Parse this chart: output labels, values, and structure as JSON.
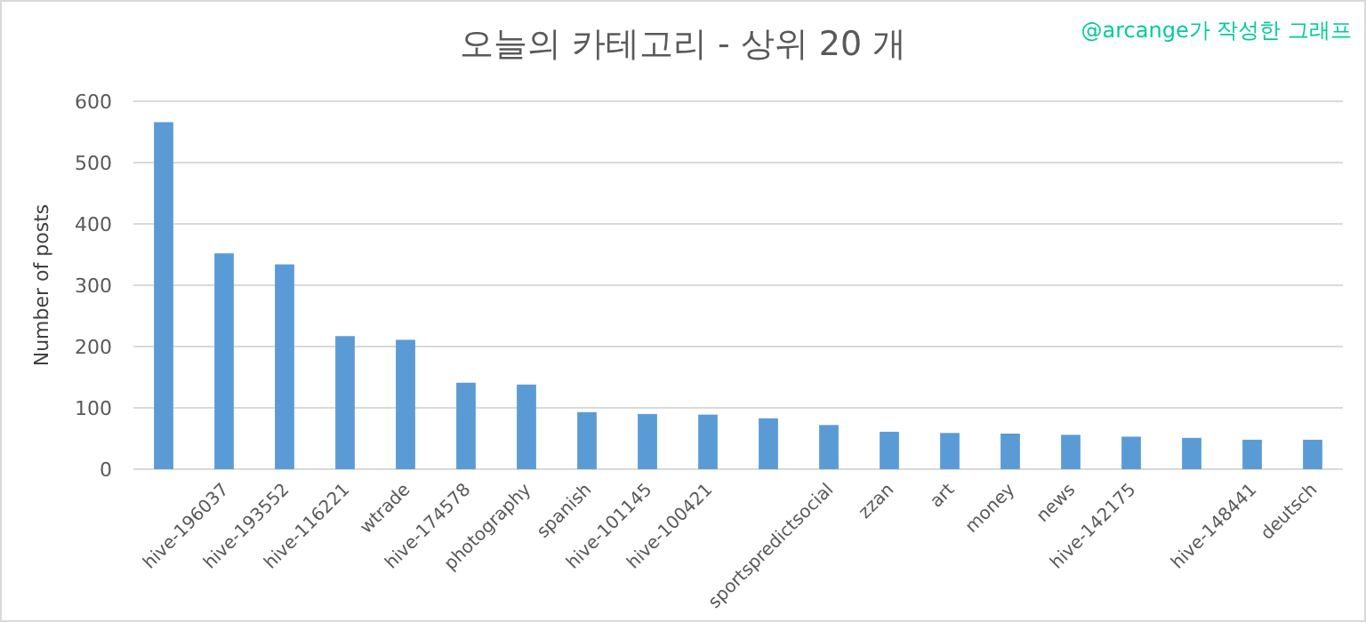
{
  "chart_data": {
    "type": "bar",
    "title": "오늘의 카테고리 - 상위 20 개",
    "ylabel": "Number  of posts",
    "annotations": [
      "@arcange가 작성한 그래프"
    ],
    "categories": [
      null,
      "hive-196037",
      "hive-193552",
      "hive-116221",
      "wtrade",
      "hive-174578",
      "photography",
      "spanish",
      "hive-101145",
      "hive-100421",
      null,
      "sportspredictsocial",
      "zzan",
      "art",
      "money",
      "news",
      "hive-142175",
      null,
      "hive-148441",
      "deutsch"
    ],
    "values": [
      566,
      352,
      334,
      217,
      211,
      141,
      138,
      93,
      90,
      89,
      83,
      72,
      61,
      59,
      58,
      56,
      53,
      51,
      48,
      48
    ],
    "color": "#5b9bd5",
    "ylim": [
      0,
      600
    ],
    "yticks": [
      0,
      100,
      200,
      300,
      400,
      500,
      600
    ],
    "grid": "y"
  }
}
